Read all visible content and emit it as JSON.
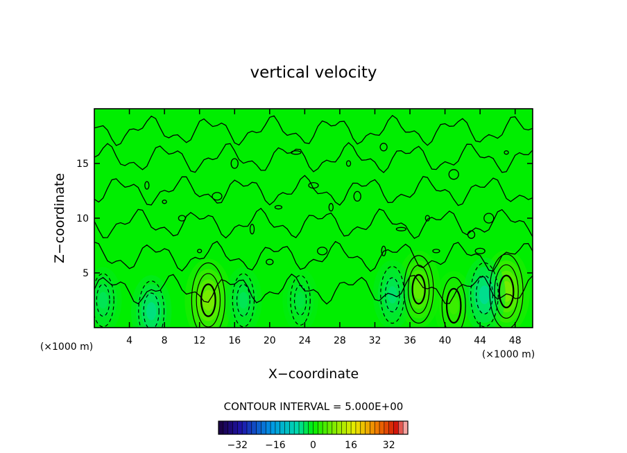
{
  "chart_data": {
    "type": "heatmap",
    "title": "vertical velocity",
    "xlabel": "X−coordinate",
    "ylabel": "Z−coordinate",
    "x_unit_left": "(×1000 m)",
    "x_unit_right": "(×1000 m)",
    "xlim": [
      0,
      50
    ],
    "ylim": [
      0,
      20
    ],
    "x_ticks": [
      4,
      8,
      12,
      16,
      20,
      24,
      28,
      32,
      36,
      40,
      44,
      48
    ],
    "y_ticks": [
      5,
      10,
      15
    ],
    "contour_interval_label": "CONTOUR INTERVAL = 5.000E+00",
    "contour_interval": 5.0,
    "colorbar": {
      "ticks": [
        -32,
        -16,
        0,
        16,
        32
      ],
      "range": [
        -40,
        40
      ]
    },
    "features": [
      {
        "kind": "updraft",
        "x": 13,
        "z": 2.5,
        "value": 10
      },
      {
        "kind": "updraft",
        "x": 37,
        "z": 3.5,
        "value": 8
      },
      {
        "kind": "updraft",
        "x": 47,
        "z": 3.3,
        "value": 10
      },
      {
        "kind": "updraft",
        "x": 41,
        "z": 2.0,
        "value": 5
      },
      {
        "kind": "downdraft",
        "x": 6.5,
        "z": 1.5,
        "value": -6
      },
      {
        "kind": "downdraft",
        "x": 17,
        "z": 2.5,
        "value": -4
      },
      {
        "kind": "downdraft",
        "x": 34,
        "z": 3.0,
        "value": -5
      },
      {
        "kind": "downdraft",
        "x": 44.5,
        "z": 3.0,
        "value": -7
      },
      {
        "kind": "downdraft",
        "x": 1.0,
        "z": 2.5,
        "value": -4
      },
      {
        "kind": "downdraft",
        "x": 23.5,
        "z": 2.5,
        "value": -3
      }
    ]
  },
  "colors": {
    "field_zero": "#00ee00",
    "axis": "#000000"
  }
}
